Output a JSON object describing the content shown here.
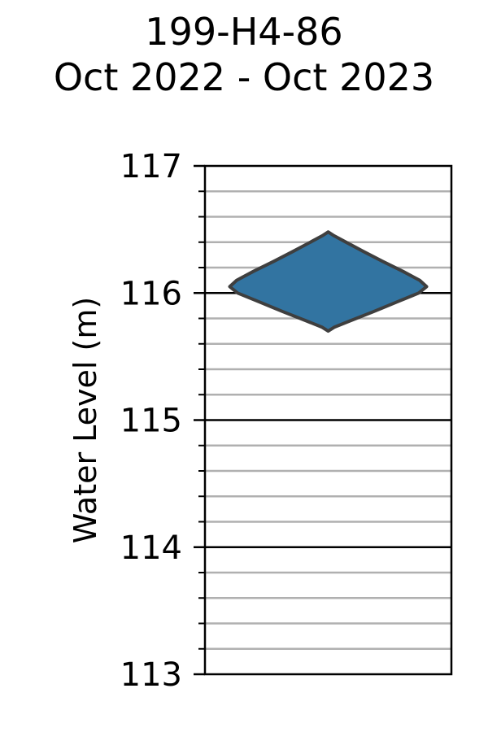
{
  "chart_data": {
    "type": "violin",
    "title_lines": [
      "199-H4-86",
      "Oct 2022 - Oct 2023"
    ],
    "xlabel": "",
    "ylabel": "Water Level (m)",
    "ylim": [
      113,
      117
    ],
    "yticks": [
      113,
      114,
      115,
      116,
      117
    ],
    "ytick_labels": [
      "113",
      "114",
      "115",
      "116",
      "117"
    ],
    "minor_tick_step": 0.2,
    "grid": {
      "major": true,
      "minor": true
    },
    "colors": {
      "violin_fill": "#3274a1",
      "violin_edge": "#3f3f3f",
      "major_grid": "#000000",
      "minor_grid": "#b0b0b0"
    },
    "violin": {
      "min": 115.7,
      "max": 116.48,
      "profile": [
        {
          "y": 115.7,
          "w": 0.0
        },
        {
          "y": 115.73,
          "w": 0.06
        },
        {
          "y": 115.78,
          "w": 0.22
        },
        {
          "y": 115.85,
          "w": 0.45
        },
        {
          "y": 115.93,
          "w": 0.7
        },
        {
          "y": 116.0,
          "w": 0.92
        },
        {
          "y": 116.05,
          "w": 1.0
        },
        {
          "y": 116.1,
          "w": 0.93
        },
        {
          "y": 116.17,
          "w": 0.76
        },
        {
          "y": 116.25,
          "w": 0.55
        },
        {
          "y": 116.33,
          "w": 0.35
        },
        {
          "y": 116.4,
          "w": 0.18
        },
        {
          "y": 116.45,
          "w": 0.06
        },
        {
          "y": 116.48,
          "w": 0.0
        }
      ]
    }
  }
}
